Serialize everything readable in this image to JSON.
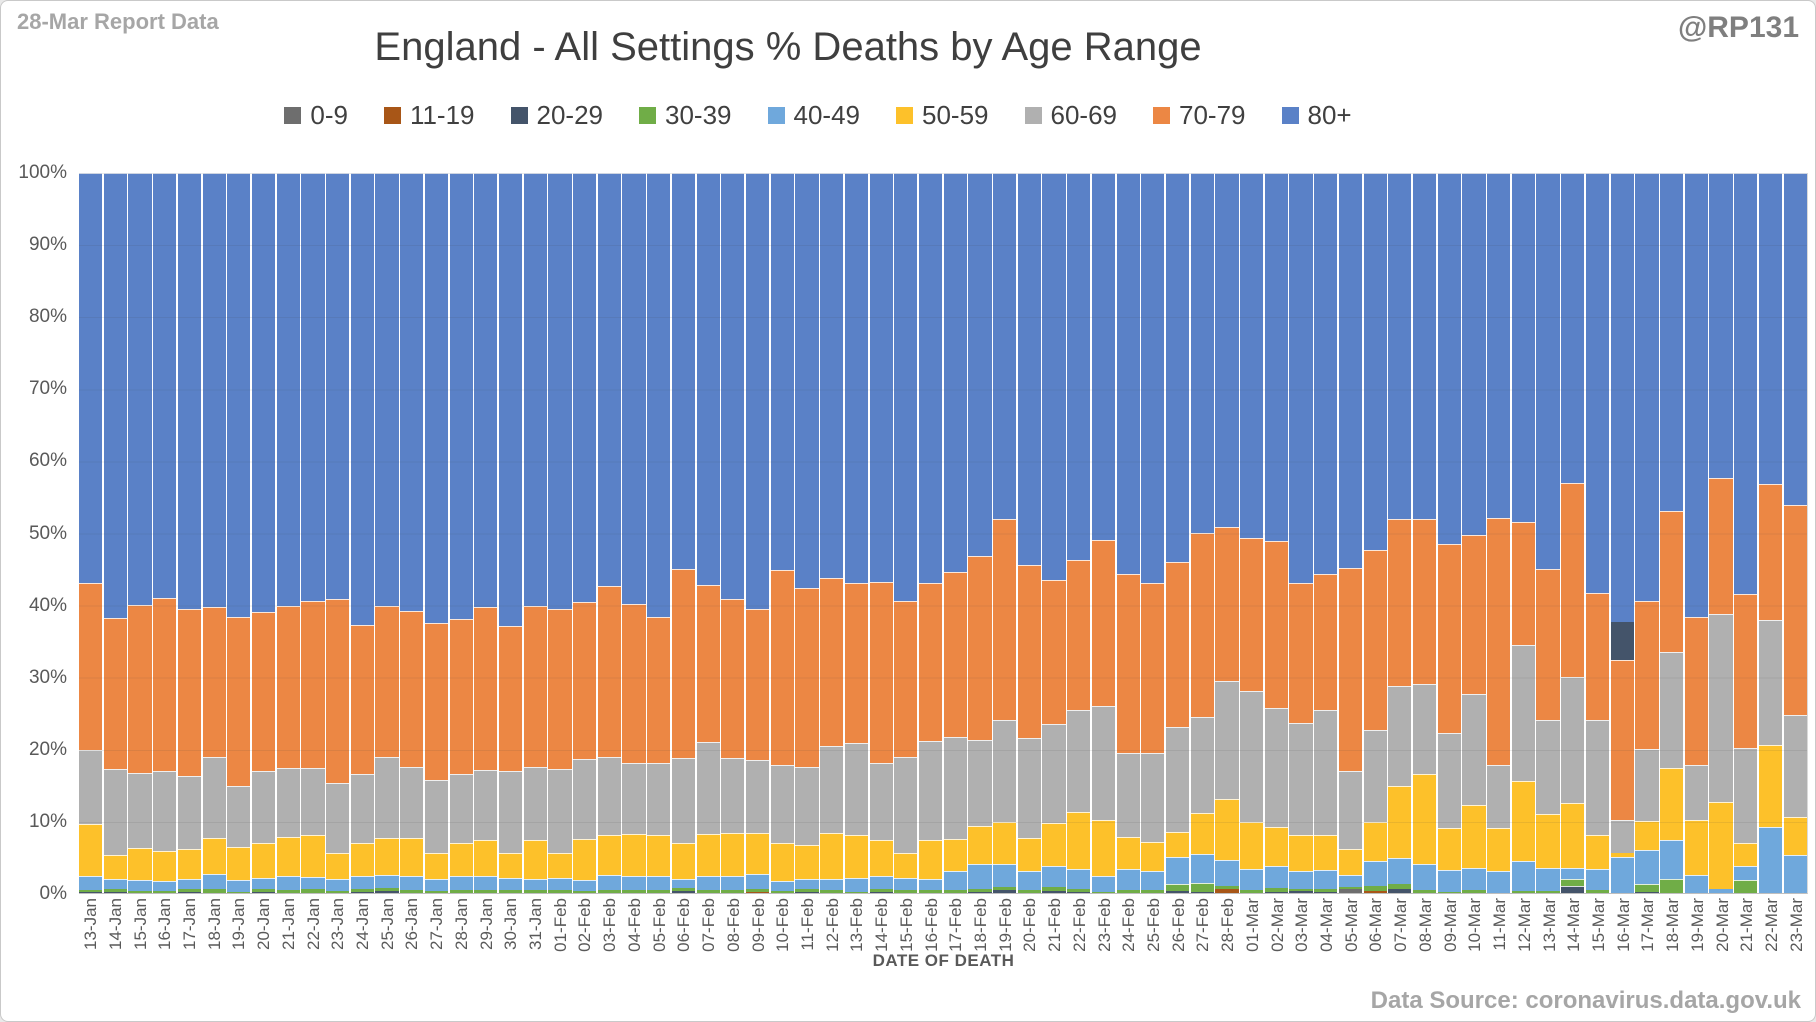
{
  "header": {
    "report_label": "28-Mar Report Data",
    "title": "England - All Settings % Deaths by Age Range",
    "watermark": "@RP131"
  },
  "footer": {
    "x_axis_title": "DATE OF DEATH",
    "data_source": "Data Source: coronavirus.data.gov.uk"
  },
  "chart_data": {
    "type": "bar",
    "stacked": true,
    "stack_unit": "percent",
    "title": "England - All Settings % Deaths by Age Range",
    "xlabel": "DATE OF DEATH",
    "ylabel": "",
    "ylim": [
      0,
      100
    ],
    "grid": true,
    "legend_position": "top",
    "y_ticks": [
      "100%",
      "90%",
      "80%",
      "70%",
      "60%",
      "50%",
      "40%",
      "30%",
      "20%",
      "10%",
      "0%"
    ],
    "categories": [
      "13-Jan",
      "14-Jan",
      "15-Jan",
      "16-Jan",
      "17-Jan",
      "18-Jan",
      "19-Jan",
      "20-Jan",
      "21-Jan",
      "22-Jan",
      "23-Jan",
      "24-Jan",
      "25-Jan",
      "26-Jan",
      "27-Jan",
      "28-Jan",
      "29-Jan",
      "30-Jan",
      "31-Jan",
      "01-Feb",
      "02-Feb",
      "03-Feb",
      "04-Feb",
      "05-Feb",
      "06-Feb",
      "07-Feb",
      "08-Feb",
      "09-Feb",
      "10-Feb",
      "11-Feb",
      "12-Feb",
      "13-Feb",
      "14-Feb",
      "15-Feb",
      "16-Feb",
      "17-Feb",
      "18-Feb",
      "19-Feb",
      "20-Feb",
      "21-Feb",
      "22-Feb",
      "23-Feb",
      "24-Feb",
      "25-Feb",
      "26-Feb",
      "27-Feb",
      "28-Feb",
      "01-Mar",
      "02-Mar",
      "03-Mar",
      "04-Mar",
      "05-Mar",
      "06-Mar",
      "07-Mar",
      "08-Mar",
      "09-Mar",
      "10-Mar",
      "11-Mar",
      "12-Mar",
      "13-Mar",
      "14-Mar",
      "15-Mar",
      "16-Mar",
      "17-Mar",
      "18-Mar",
      "19-Mar",
      "20-Mar",
      "21-Mar",
      "22-Mar",
      "23-Mar"
    ],
    "series": [
      {
        "name": "0-9",
        "color": "#6e6e6e",
        "values": [
          0,
          0,
          0,
          0,
          0,
          0,
          0,
          0,
          0,
          0,
          0,
          0,
          0,
          0,
          0,
          0,
          0,
          0,
          0,
          0,
          0,
          0,
          0,
          0,
          0,
          0,
          0,
          0,
          0,
          0,
          0,
          0,
          0,
          0,
          0,
          0,
          0,
          0,
          0,
          0,
          0,
          0,
          0,
          0,
          0,
          0,
          0,
          0,
          0,
          0,
          0,
          0.6,
          0,
          0,
          0,
          0,
          0,
          0,
          0,
          0,
          0,
          0,
          0,
          0,
          0,
          0,
          0,
          0,
          0,
          0
        ]
      },
      {
        "name": "11-19",
        "color": "#a85617",
        "values": [
          0,
          0,
          0,
          0,
          0,
          0,
          0,
          0,
          0,
          0,
          0,
          0,
          0,
          0,
          0,
          0,
          0,
          0,
          0,
          0,
          0,
          0,
          0,
          0,
          0,
          0,
          0,
          0.1,
          0,
          0,
          0,
          0,
          0,
          0,
          0,
          0,
          0,
          0,
          0,
          0,
          0,
          0,
          0,
          0,
          0,
          0,
          0.5,
          0,
          0,
          0,
          0,
          0,
          0.3,
          0,
          0,
          0,
          0,
          0,
          0,
          0,
          0,
          0,
          0,
          0,
          0,
          0,
          0,
          0,
          0,
          0
        ]
      },
      {
        "name": "20-29",
        "color": "#44546a",
        "values": [
          0.1,
          0.1,
          0,
          0,
          0.1,
          0,
          0,
          0.2,
          0,
          0,
          0,
          0.2,
          0.3,
          0,
          0,
          0,
          0,
          0,
          0,
          0,
          0,
          0,
          0,
          0,
          0.3,
          0,
          0,
          0,
          0,
          0.2,
          0,
          0,
          0.2,
          0,
          0,
          0,
          0.2,
          0.4,
          0,
          0.3,
          0.2,
          0,
          0,
          0,
          0.3,
          0.2,
          0,
          0,
          0.2,
          0.3,
          0.2,
          0,
          0,
          0.5,
          0,
          0,
          0,
          0,
          0,
          0,
          1.0,
          0,
          0,
          0.2,
          0,
          0,
          0,
          0,
          0,
          0
        ]
      },
      {
        "name": "30-39",
        "color": "#70ad47",
        "values": [
          0.3,
          0.4,
          0.3,
          0.3,
          0.5,
          0.5,
          0.2,
          0.4,
          0.4,
          0.5,
          0.3,
          0.4,
          0.4,
          0.4,
          0.3,
          0.4,
          0.4,
          0.4,
          0.4,
          0.4,
          0.3,
          0.4,
          0.4,
          0.4,
          0.4,
          0.4,
          0.4,
          0.5,
          0.3,
          0.4,
          0.4,
          0.2,
          0.4,
          0.4,
          0.4,
          0.4,
          0.4,
          0.5,
          0.4,
          0.5,
          0.4,
          0.2,
          0.4,
          0.4,
          0.9,
          1.2,
          0.5,
          0.4,
          0.5,
          0.3,
          0.4,
          0.2,
          0.7,
          0.8,
          0.4,
          0.2,
          0.4,
          0,
          0.3,
          0.3,
          1.0,
          0.4,
          0,
          1.0,
          2.0,
          0,
          0,
          1.8,
          0,
          0
        ]
      },
      {
        "name": "40-49",
        "color": "#6fa8dc",
        "values": [
          2.0,
          1.5,
          1.5,
          1.3,
          1.4,
          2.1,
          1.6,
          1.5,
          2.0,
          1.7,
          1.6,
          1.7,
          1.8,
          2.0,
          1.7,
          2.0,
          1.9,
          1.7,
          1.6,
          1.7,
          1.5,
          2.1,
          1.9,
          1.9,
          1.2,
          1.9,
          1.9,
          2.1,
          1.3,
          1.4,
          1.6,
          1.9,
          1.7,
          1.7,
          1.6,
          2.7,
          3.4,
          3.1,
          2.6,
          3.0,
          2.7,
          2.1,
          2.9,
          2.6,
          3.8,
          4.0,
          3.6,
          3.0,
          3.0,
          2.5,
          2.6,
          1.7,
          3.4,
          3.5,
          3.6,
          3.0,
          3.1,
          3.0,
          4.2,
          3.2,
          1.5,
          3.0,
          5.0,
          4.8,
          5.3,
          2.5,
          0.5,
          2.0,
          9.2,
          5.3
        ]
      },
      {
        "name": "50-59",
        "color": "#fdc12a",
        "values": [
          7.2,
          3.3,
          4.5,
          4.3,
          4.1,
          5.1,
          4.6,
          4.8,
          5.4,
          5.9,
          3.6,
          4.6,
          5.1,
          5.2,
          3.5,
          4.5,
          5.0,
          3.4,
          5.3,
          3.4,
          5.7,
          5.5,
          5.9,
          5.7,
          5.0,
          5.9,
          6.0,
          5.6,
          5.3,
          4.7,
          6.3,
          6.0,
          5.0,
          3.5,
          5.3,
          4.4,
          5.3,
          5.9,
          4.6,
          5.9,
          7.9,
          7.8,
          4.5,
          4.1,
          3.5,
          5.7,
          8.5,
          6.5,
          5.5,
          5.0,
          4.9,
          3.6,
          5.5,
          10.0,
          12.5,
          5.8,
          8.7,
          6.1,
          11.0,
          7.5,
          9.0,
          4.6,
          0.6,
          4.0,
          10.0,
          7.6,
          12.2,
          3.1,
          11.4,
          5.3
        ]
      },
      {
        "name": "60-69",
        "color": "#b0b0b0",
        "values": [
          10.2,
          11.9,
          10.4,
          11.1,
          10.2,
          11.2,
          8.4,
          10.0,
          9.6,
          9.3,
          9.8,
          9.7,
          11.3,
          9.9,
          10.2,
          9.6,
          9.8,
          11.4,
          10.2,
          11.7,
          11.1,
          10.9,
          9.9,
          10.0,
          11.8,
          12.8,
          10.5,
          10.2,
          10.9,
          10.8,
          12.1,
          12.8,
          10.7,
          13.3,
          13.8,
          14.2,
          12.0,
          14.1,
          14.0,
          13.8,
          14.2,
          15.9,
          11.7,
          12.3,
          14.5,
          13.4,
          16.3,
          18.2,
          16.5,
          15.5,
          17.3,
          10.8,
          12.7,
          13.9,
          12.6,
          13.2,
          15.4,
          8.7,
          19.0,
          13.0,
          17.5,
          16.0,
          4.5,
          10.0,
          16.2,
          7.7,
          26.1,
          13.2,
          17.3,
          14.1
        ]
      },
      {
        "name": "70-79",
        "color": "#ec8744",
        "values": [
          23.2,
          21.0,
          23.3,
          24.0,
          23.2,
          20.8,
          23.6,
          22.1,
          22.4,
          23.2,
          25.5,
          20.6,
          20.9,
          21.7,
          21.8,
          21.6,
          22.6,
          20.2,
          22.4,
          22.3,
          21.8,
          23.7,
          22.0,
          20.4,
          26.3,
          21.8,
          22.0,
          20.9,
          27.1,
          24.8,
          23.4,
          22.1,
          25.2,
          21.6,
          21.9,
          22.9,
          25.5,
          27.9,
          23.9,
          20.0,
          20.8,
          23.0,
          24.8,
          23.7,
          23.0,
          25.5,
          21.5,
          21.2,
          23.2,
          19.4,
          18.9,
          28.2,
          25.0,
          23.2,
          22.9,
          26.3,
          22.1,
          34.3,
          17.0,
          21.0,
          27.0,
          17.7,
          22.3,
          20.5,
          19.6,
          20.5,
          18.8,
          21.5,
          18.9,
          29.2
        ]
      },
      {
        "name": "80+",
        "color": "#5a81c7",
        "values": [
          57.0,
          61.8,
          60.0,
          59.0,
          60.5,
          60.3,
          61.6,
          61.0,
          60.2,
          59.4,
          59.2,
          62.8,
          60.2,
          60.8,
          62.5,
          61.9,
          60.3,
          62.9,
          60.1,
          60.5,
          59.6,
          57.4,
          59.9,
          61.6,
          55.0,
          57.2,
          59.2,
          60.6,
          55.1,
          57.7,
          56.2,
          57.0,
          56.8,
          59.5,
          57.0,
          55.4,
          53.2,
          48.1,
          54.5,
          56.5,
          53.8,
          51.0,
          55.7,
          56.9,
          54.0,
          50.0,
          49.1,
          50.7,
          51.1,
          57.0,
          55.7,
          54.9,
          52.4,
          48.1,
          48.0,
          51.5,
          50.3,
          47.9,
          48.5,
          55.0,
          43.0,
          58.3,
          67.6,
          59.5,
          46.9,
          61.7,
          42.4,
          58.4,
          43.2,
          46.1
        ]
      }
    ],
    "annotations": [
      {
        "category": "16-Mar",
        "description": "dark band within 80+ region",
        "from": 32.4,
        "to": 37.7,
        "color": "#44546a"
      }
    ]
  }
}
